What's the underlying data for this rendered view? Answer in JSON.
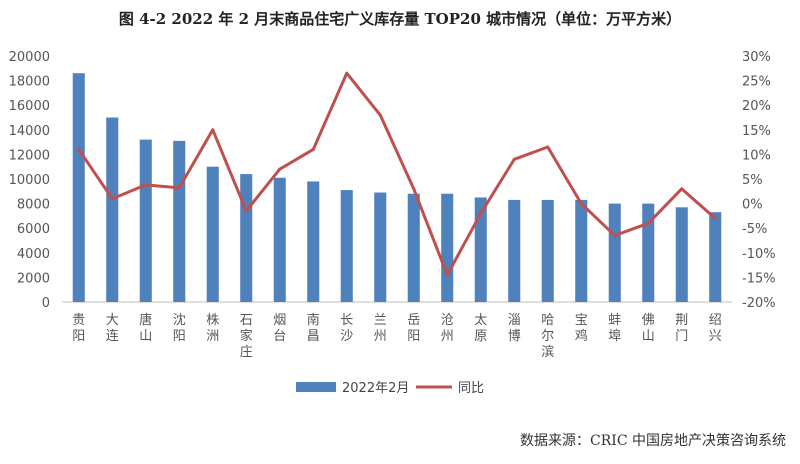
{
  "title": "图 4-2 2022 年 2 月末商品住宅广义库存量 TOP20 城市情况（单位：万平方米）",
  "source": "数据来源：CRIC 中国房地产决策咨询系统",
  "colors": {
    "bar": "#4f81bd",
    "line": "#c0504d",
    "axis": "#bfbfbf"
  },
  "chart_data": {
    "type": "bar",
    "categories": [
      "贵阳",
      "大连",
      "唐山",
      "沈阳",
      "株洲",
      "石家庄",
      "烟台",
      "南昌",
      "长沙",
      "兰州",
      "岳阳",
      "沧州",
      "太原",
      "淄博",
      "哈尔滨",
      "宝鸡",
      "蚌埠",
      "佛山",
      "荆门",
      "绍兴"
    ],
    "series": [
      {
        "name": "2022年2月",
        "kind": "bar",
        "axis": "left",
        "values": [
          18600,
          15000,
          13200,
          13100,
          11000,
          10400,
          10100,
          9800,
          9100,
          8900,
          8800,
          8800,
          8500,
          8300,
          8300,
          8300,
          8000,
          8000,
          7700,
          7300
        ]
      },
      {
        "name": "同比",
        "kind": "line",
        "axis": "right",
        "values": [
          11,
          1,
          3.8,
          3.2,
          15,
          -1.5,
          7,
          11,
          26.5,
          18,
          3,
          -14.5,
          -2,
          9,
          11.5,
          0,
          -6.5,
          -4,
          3,
          -3
        ]
      }
    ],
    "y_left": {
      "min": 0,
      "max": 20000,
      "step": 2000,
      "ticks": [
        "0",
        "2000",
        "4000",
        "6000",
        "8000",
        "10000",
        "12000",
        "14000",
        "16000",
        "18000",
        "20000"
      ]
    },
    "y_right": {
      "min": -20,
      "max": 30,
      "step": 5,
      "ticks": [
        "-20%",
        "-15%",
        "-10%",
        "-5%",
        "0%",
        "5%",
        "10%",
        "15%",
        "20%",
        "25%",
        "30%"
      ]
    },
    "grid": false,
    "legend_position": "bottom"
  }
}
